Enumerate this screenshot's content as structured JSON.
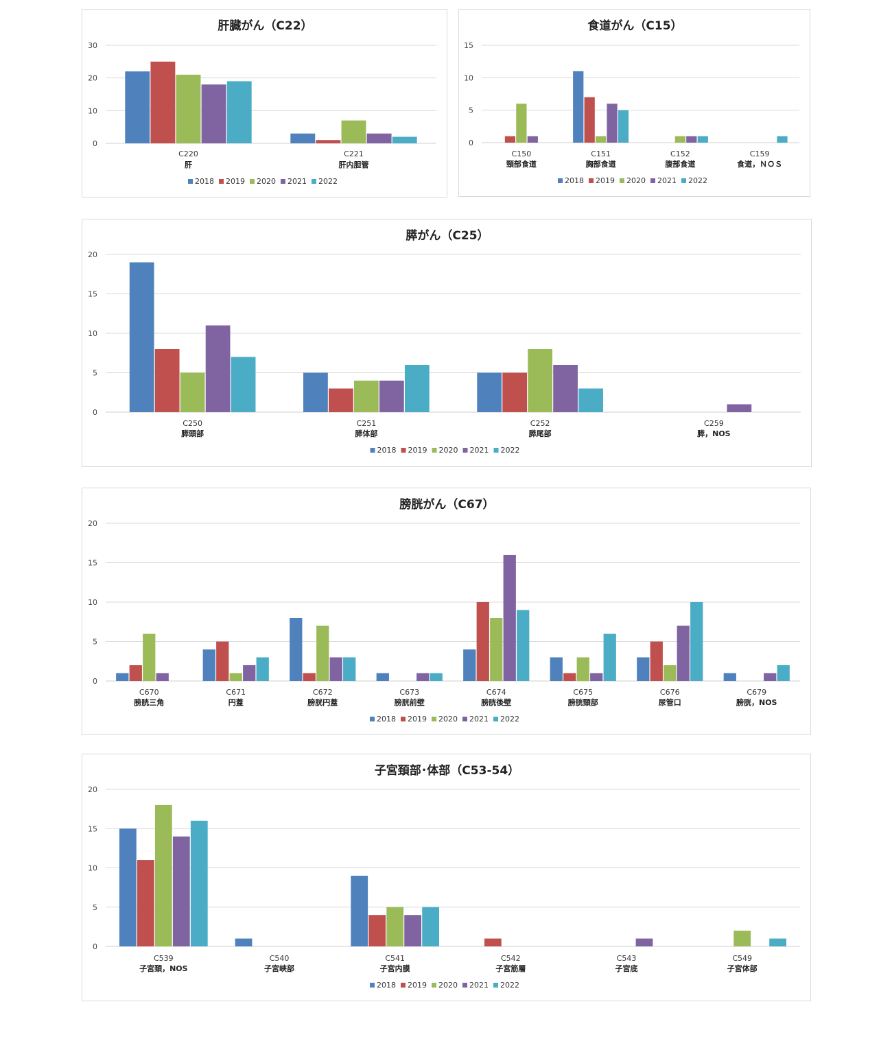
{
  "legend": [
    "2018",
    "2019",
    "2020",
    "2021",
    "2022"
  ],
  "colors": [
    "#4f81bd",
    "#c0504d",
    "#9bbb59",
    "#8064a2",
    "#4bacc6"
  ],
  "chart_data": [
    {
      "type": "bar",
      "title": "肝臓がん（C22）",
      "ylim": [
        0,
        30
      ],
      "yticks": [
        0,
        10,
        20,
        30
      ],
      "categories": [
        {
          "code": "C220",
          "name": "肝"
        },
        {
          "code": "C221",
          "name": "肝内胆管"
        }
      ],
      "series": [
        {
          "name": "2018",
          "values": [
            22,
            3
          ]
        },
        {
          "name": "2019",
          "values": [
            25,
            1
          ]
        },
        {
          "name": "2020",
          "values": [
            21,
            7
          ]
        },
        {
          "name": "2021",
          "values": [
            18,
            3
          ]
        },
        {
          "name": "2022",
          "values": [
            19,
            2
          ]
        }
      ],
      "grid": true,
      "legend_position": "bottom"
    },
    {
      "type": "bar",
      "title": "食道がん（C15）",
      "ylim": [
        0,
        15
      ],
      "yticks": [
        0,
        5,
        10,
        15
      ],
      "categories": [
        {
          "code": "C150",
          "name": "頸部食道"
        },
        {
          "code": "C151",
          "name": "胸部食道"
        },
        {
          "code": "C152",
          "name": "腹部食道"
        },
        {
          "code": "C159",
          "name": "食道，ＮＯＳ"
        }
      ],
      "series": [
        {
          "name": "2018",
          "values": [
            0,
            11,
            0,
            0
          ]
        },
        {
          "name": "2019",
          "values": [
            1,
            7,
            0,
            0
          ]
        },
        {
          "name": "2020",
          "values": [
            6,
            1,
            1,
            0
          ]
        },
        {
          "name": "2021",
          "values": [
            1,
            6,
            1,
            0
          ]
        },
        {
          "name": "2022",
          "values": [
            0,
            5,
            1,
            1
          ]
        }
      ],
      "grid": true,
      "legend_position": "bottom"
    },
    {
      "type": "bar",
      "title": "膵がん（C25）",
      "ylim": [
        0,
        20
      ],
      "yticks": [
        0,
        5,
        10,
        15,
        20
      ],
      "categories": [
        {
          "code": "C250",
          "name": "膵頭部"
        },
        {
          "code": "C251",
          "name": "膵体部"
        },
        {
          "code": "C252",
          "name": "膵尾部"
        },
        {
          "code": "C259",
          "name": "膵，NOS"
        }
      ],
      "series": [
        {
          "name": "2018",
          "values": [
            19,
            5,
            5,
            0
          ]
        },
        {
          "name": "2019",
          "values": [
            8,
            3,
            5,
            0
          ]
        },
        {
          "name": "2020",
          "values": [
            5,
            4,
            8,
            0
          ]
        },
        {
          "name": "2021",
          "values": [
            11,
            4,
            6,
            1
          ]
        },
        {
          "name": "2022",
          "values": [
            7,
            6,
            3,
            0
          ]
        }
      ],
      "grid": true,
      "legend_position": "bottom"
    },
    {
      "type": "bar",
      "title": "膀胱がん（C67）",
      "ylim": [
        0,
        20
      ],
      "yticks": [
        0,
        5,
        10,
        15,
        20
      ],
      "categories": [
        {
          "code": "C670",
          "name": "膀胱三角"
        },
        {
          "code": "C671",
          "name": "円蓋"
        },
        {
          "code": "C672",
          "name": "膀胱円蓋"
        },
        {
          "code": "C673",
          "name": "膀胱前壁"
        },
        {
          "code": "C674",
          "name": "膀胱後壁"
        },
        {
          "code": "C675",
          "name": "膀胱頸部"
        },
        {
          "code": "C676",
          "name": "尿管口"
        },
        {
          "code": "C679",
          "name": "膀胱，NOS"
        }
      ],
      "series": [
        {
          "name": "2018",
          "values": [
            1,
            4,
            8,
            1,
            4,
            3,
            3,
            1
          ]
        },
        {
          "name": "2019",
          "values": [
            2,
            5,
            1,
            0,
            10,
            1,
            5,
            0
          ]
        },
        {
          "name": "2020",
          "values": [
            6,
            1,
            7,
            0,
            8,
            3,
            2,
            0
          ]
        },
        {
          "name": "2021",
          "values": [
            1,
            2,
            3,
            1,
            16,
            1,
            7,
            1
          ]
        },
        {
          "name": "2022",
          "values": [
            0,
            3,
            3,
            1,
            9,
            6,
            10,
            2
          ]
        }
      ],
      "grid": true,
      "legend_position": "bottom"
    },
    {
      "type": "bar",
      "title": "子宮頚部･体部（C53-54）",
      "ylim": [
        0,
        20
      ],
      "yticks": [
        0,
        5,
        10,
        15,
        20
      ],
      "categories": [
        {
          "code": "C539",
          "name": "子宮頚，NOS"
        },
        {
          "code": "C540",
          "name": "子宮峡部"
        },
        {
          "code": "C541",
          "name": "子宮内膜"
        },
        {
          "code": "C542",
          "name": "子宮筋層"
        },
        {
          "code": "C543",
          "name": "子宮底"
        },
        {
          "code": "C549",
          "name": "子宮体部"
        }
      ],
      "series": [
        {
          "name": "2018",
          "values": [
            15,
            1,
            9,
            0,
            0,
            0
          ]
        },
        {
          "name": "2019",
          "values": [
            11,
            0,
            4,
            1,
            0,
            0
          ]
        },
        {
          "name": "2020",
          "values": [
            18,
            0,
            5,
            0,
            0,
            2
          ]
        },
        {
          "name": "2021",
          "values": [
            14,
            0,
            4,
            0,
            1,
            0
          ]
        },
        {
          "name": "2022",
          "values": [
            16,
            0,
            5,
            0,
            0,
            1
          ]
        }
      ],
      "grid": true,
      "legend_position": "bottom"
    }
  ]
}
